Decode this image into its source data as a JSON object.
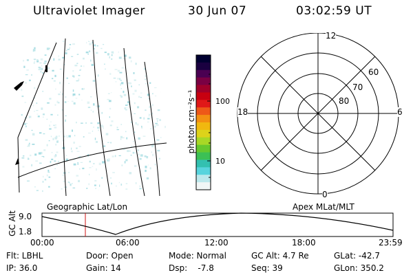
{
  "header": {
    "title": "Ultraviolet Imager",
    "date": "30 Jun 07",
    "time": "03:02:59 UT"
  },
  "colorbar": {
    "unit_label": "photon cm⁻²s⁻¹",
    "ticks": [
      "100",
      "10"
    ],
    "colors": [
      "#000030",
      "#1a0040",
      "#4a0052",
      "#7a0043",
      "#a0002a",
      "#c80010",
      "#e01818",
      "#ee5818",
      "#f39012",
      "#f1b80f",
      "#ddd31a",
      "#a8d826",
      "#66c82e",
      "#3cc055",
      "#33c0b0",
      "#58d4dd",
      "#bce8ec",
      "#f1f6f6"
    ]
  },
  "image_panel": {
    "name": "uv-imager-frame"
  },
  "polar_plot": {
    "lat_labels": [
      "60",
      "70",
      "80"
    ],
    "mlt_labels": [
      "12",
      "18",
      "6",
      "0"
    ]
  },
  "orbit": {
    "y_axis_label": "GC Alt",
    "y_ticks": [
      "9.0",
      "1.8"
    ],
    "left_caption": "Geographic Lat/Lon",
    "right_caption": "Apex MLat/MLT",
    "x_ticks": [
      "00:00",
      "06:00",
      "12:00",
      "18:00",
      "23:59"
    ]
  },
  "info": {
    "row1": [
      {
        "key": "filter",
        "text": "Flt: LBHL"
      },
      {
        "key": "door",
        "text": "Door: Open"
      },
      {
        "key": "mode",
        "text": "Mode: Normal"
      },
      {
        "key": "gc_alt",
        "text": "GC Alt: 4.7 Re"
      },
      {
        "key": "glat",
        "text": "GLat: -42.7"
      }
    ],
    "row2": [
      {
        "key": "ip",
        "text": "IP: 36.0"
      },
      {
        "key": "gain",
        "text": "Gain: 14"
      },
      {
        "key": "dsp",
        "text": "Dsp:    -7.8"
      },
      {
        "key": "seq",
        "text": "Seq: 39"
      },
      {
        "key": "glon",
        "text": "GLon: 350.2"
      }
    ]
  }
}
